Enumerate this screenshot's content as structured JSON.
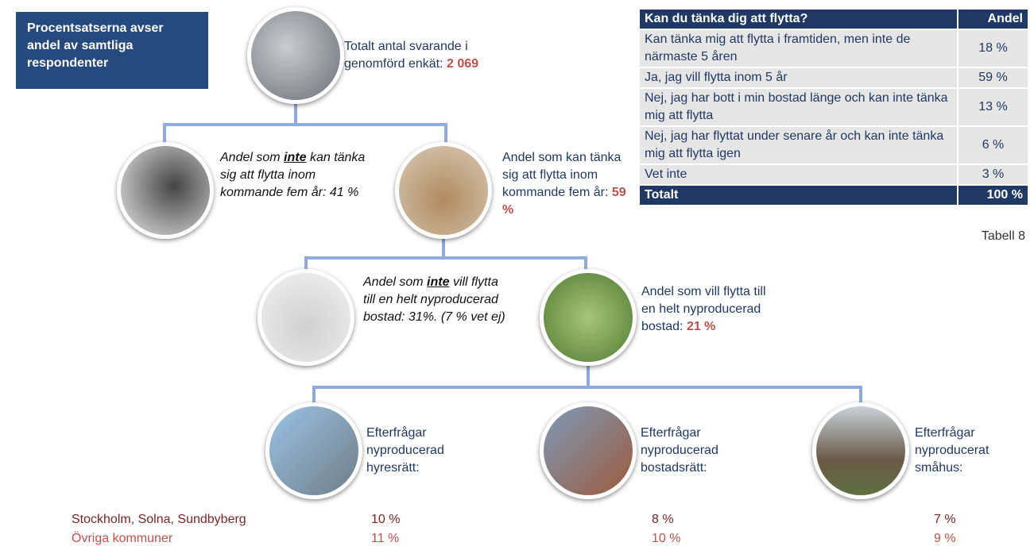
{
  "note": "Procentsatserna avser andel av samtliga respondenter",
  "nodes": [
    {
      "text": "Totalt antal svarande i genomförd enkät: ",
      "value": "2 069"
    },
    {
      "before": "Andel som ",
      "emphasis": "inte",
      "after": " kan tänka sig att flytta inom kommande fem år: 41 %"
    },
    {
      "text": "Andel som kan tänka sig att flytta inom kommande fem år: ",
      "value": "59 %"
    },
    {
      "before": "Andel som ",
      "emphasis": "inte",
      "after": " vill flytta till en helt nyproducerad bostad: 31%. (7 % vet ej)"
    },
    {
      "text": "Andel som vill flytta till en helt nyproducerad bostad: ",
      "value": "21 %"
    },
    {
      "text": "Efterfrågar nyproducerad hyresrätt:"
    },
    {
      "text": "Efterfrågar nyproducerad bostadsrätt:"
    },
    {
      "text": "Efterfrågar nyproducerat småhus:"
    }
  ],
  "table": {
    "header": [
      "Kan du tänka dig att flytta?",
      "Andel"
    ],
    "rows": [
      [
        "Kan tänka mig att flytta i framtiden, men inte de närmaste 5 åren",
        "18 %"
      ],
      [
        "Ja, jag vill flytta inom 5 år",
        "59 %"
      ],
      [
        "Nej, jag har bott i min bostad länge och kan inte tänka mig att flytta",
        "13 %"
      ],
      [
        "Nej, jag har flyttat under senare år och kan inte tänka mig att flytta igen",
        "6 %"
      ],
      [
        "Vet inte",
        "3 %"
      ]
    ],
    "total": [
      "Totalt",
      "100 %"
    ],
    "caption": "Tabell 8"
  },
  "breakdown": {
    "rows": [
      {
        "label": "Stockholm, Solna, Sundbyberg",
        "values": [
          "10 %",
          "8 %",
          "7 %"
        ]
      },
      {
        "label": "Övriga kommuner",
        "values": [
          "11 %",
          "10 %",
          "9 %"
        ]
      }
    ]
  }
}
